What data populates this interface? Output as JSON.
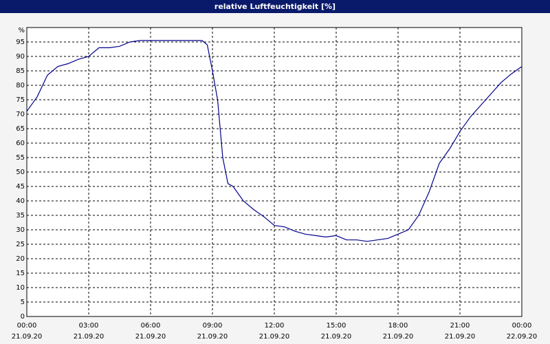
{
  "chart_data": {
    "type": "line",
    "title": "relative Luftfeuchtigkeit [%]",
    "y_label": "%",
    "color": "#00008b",
    "grid": true,
    "x": [
      "21.09.20 00:00",
      "21.09.20 00:30",
      "21.09.20 01:00",
      "21.09.20 01:30",
      "21.09.20 02:00",
      "21.09.20 02:30",
      "21.09.20 03:00",
      "21.09.20 03:30",
      "21.09.20 04:00",
      "21.09.20 04:30",
      "21.09.20 05:00",
      "21.09.20 05:30",
      "21.09.20 06:00",
      "21.09.20 06:30",
      "21.09.20 07:00",
      "21.09.20 07:30",
      "21.09.20 08:00",
      "21.09.20 08:30",
      "21.09.20 08:45",
      "21.09.20 09:00",
      "21.09.20 09:15",
      "21.09.20 09:30",
      "21.09.20 09:45",
      "21.09.20 10:00",
      "21.09.20 10:30",
      "21.09.20 11:00",
      "21.09.20 11:30",
      "21.09.20 12:00",
      "21.09.20 12:30",
      "21.09.20 13:00",
      "21.09.20 13:30",
      "21.09.20 14:00",
      "21.09.20 14:30",
      "21.09.20 15:00",
      "21.09.20 15:30",
      "21.09.20 16:00",
      "21.09.20 16:30",
      "21.09.20 17:00",
      "21.09.20 17:30",
      "21.09.20 18:00",
      "21.09.20 18:30",
      "21.09.20 19:00",
      "21.09.20 19:30",
      "21.09.20 20:00",
      "21.09.20 20:30",
      "21.09.20 21:00",
      "21.09.20 21:30",
      "21.09.20 22:00",
      "21.09.20 22:30",
      "21.09.20 23:00",
      "21.09.20 23:30",
      "22.09.20 00:00"
    ],
    "values": [
      71,
      76,
      83.5,
      86.5,
      87.5,
      89,
      90,
      93,
      93,
      93.5,
      95,
      95.5,
      95.5,
      95.5,
      95.5,
      95.5,
      95.5,
      95.5,
      94,
      85,
      75,
      55,
      46,
      45,
      40,
      37,
      34.5,
      31.5,
      31,
      29.5,
      28.5,
      28,
      27.5,
      28,
      26.5,
      26.5,
      26,
      26.5,
      27,
      28.5,
      30,
      35,
      43,
      53,
      58,
      64,
      69,
      73,
      77,
      81,
      84,
      86.5
    ],
    "xlim": [
      "21.09.20 00:00",
      "22.09.20 00:00"
    ],
    "xticks": [
      {
        "value": "21.09.20 00:00",
        "label": [
          "00:00",
          "21.09.20"
        ]
      },
      {
        "value": "21.09.20 03:00",
        "label": [
          "03:00",
          "21.09.20"
        ]
      },
      {
        "value": "21.09.20 06:00",
        "label": [
          "06:00",
          "21.09.20"
        ]
      },
      {
        "value": "21.09.20 09:00",
        "label": [
          "09:00",
          "21.09.20"
        ]
      },
      {
        "value": "21.09.20 12:00",
        "label": [
          "12:00",
          "21.09.20"
        ]
      },
      {
        "value": "21.09.20 15:00",
        "label": [
          "15:00",
          "21.09.20"
        ]
      },
      {
        "value": "21.09.20 18:00",
        "label": [
          "18:00",
          "21.09.20"
        ]
      },
      {
        "value": "21.09.20 21:00",
        "label": [
          "21:00",
          "21.09.20"
        ]
      },
      {
        "value": "22.09.20 00:00",
        "label": [
          "00:00",
          "22.09.20"
        ]
      }
    ],
    "ylim": [
      0,
      100
    ],
    "yticks": [
      0,
      5,
      10,
      15,
      20,
      25,
      30,
      35,
      40,
      45,
      50,
      55,
      60,
      65,
      70,
      75,
      80,
      85,
      90,
      95
    ]
  }
}
